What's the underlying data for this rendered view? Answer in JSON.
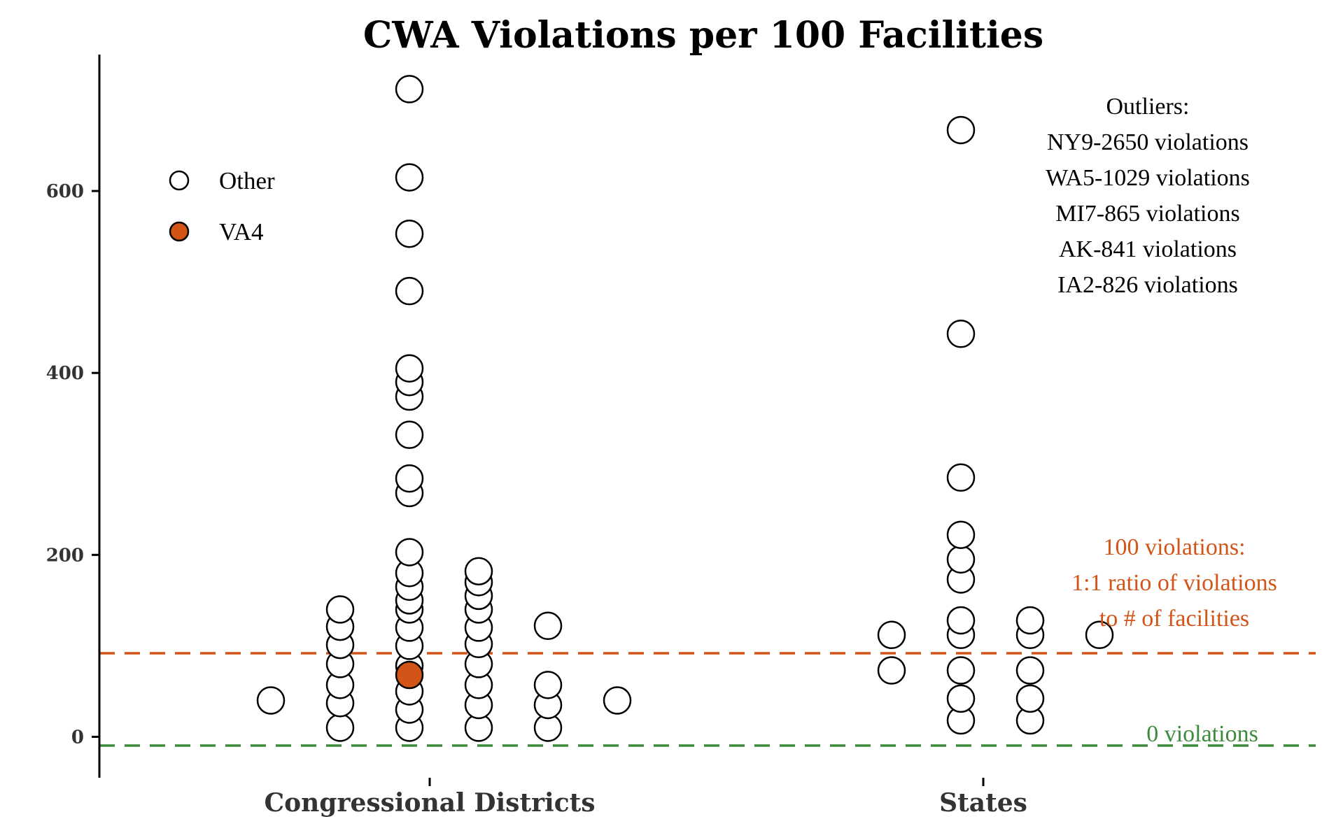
{
  "chart_data": {
    "type": "scatter",
    "title": "CWA Violations per 100 Facilities",
    "ylim": [
      -45,
      750
    ],
    "yticks": [
      0,
      200,
      400,
      600
    ],
    "categories": [
      "Congressional Districts",
      "States"
    ],
    "legend": {
      "placement": "top-left",
      "entries": [
        {
          "name": "Other",
          "fill": "#FFFFFF"
        },
        {
          "name": "VA4",
          "fill": "#D35417"
        }
      ]
    },
    "series": [
      {
        "name": "Other",
        "points": [
          {
            "group": "Congressional Districts",
            "col": -2,
            "y": 40
          },
          {
            "group": "Congressional Districts",
            "col": -1,
            "y": 10
          },
          {
            "group": "Congressional Districts",
            "col": -1,
            "y": 37
          },
          {
            "group": "Congressional Districts",
            "col": -1,
            "y": 57
          },
          {
            "group": "Congressional Districts",
            "col": -1,
            "y": 80
          },
          {
            "group": "Congressional Districts",
            "col": -1,
            "y": 101
          },
          {
            "group": "Congressional Districts",
            "col": -1,
            "y": 121
          },
          {
            "group": "Congressional Districts",
            "col": -1,
            "y": 140
          },
          {
            "group": "Congressional Districts",
            "col": 0,
            "y": 10
          },
          {
            "group": "Congressional Districts",
            "col": 0,
            "y": 30
          },
          {
            "group": "Congressional Districts",
            "col": 0,
            "y": 50
          },
          {
            "group": "Congressional Districts",
            "col": 0,
            "y": 78
          },
          {
            "group": "Congressional Districts",
            "col": 0,
            "y": 100
          },
          {
            "group": "Congressional Districts",
            "col": 0,
            "y": 120
          },
          {
            "group": "Congressional Districts",
            "col": 0,
            "y": 140
          },
          {
            "group": "Congressional Districts",
            "col": 0,
            "y": 150
          },
          {
            "group": "Congressional Districts",
            "col": 0,
            "y": 165
          },
          {
            "group": "Congressional Districts",
            "col": 0,
            "y": 180
          },
          {
            "group": "Congressional Districts",
            "col": 0,
            "y": 203
          },
          {
            "group": "Congressional Districts",
            "col": 0,
            "y": 268
          },
          {
            "group": "Congressional Districts",
            "col": 0,
            "y": 284
          },
          {
            "group": "Congressional Districts",
            "col": 0,
            "y": 332
          },
          {
            "group": "Congressional Districts",
            "col": 0,
            "y": 374
          },
          {
            "group": "Congressional Districts",
            "col": 0,
            "y": 390
          },
          {
            "group": "Congressional Districts",
            "col": 0,
            "y": 405
          },
          {
            "group": "Congressional Districts",
            "col": 0,
            "y": 490
          },
          {
            "group": "Congressional Districts",
            "col": 0,
            "y": 553
          },
          {
            "group": "Congressional Districts",
            "col": 0,
            "y": 615
          },
          {
            "group": "Congressional Districts",
            "col": 0,
            "y": 712
          },
          {
            "group": "Congressional Districts",
            "col": 1,
            "y": 10
          },
          {
            "group": "Congressional Districts",
            "col": 1,
            "y": 35
          },
          {
            "group": "Congressional Districts",
            "col": 1,
            "y": 57
          },
          {
            "group": "Congressional Districts",
            "col": 1,
            "y": 80
          },
          {
            "group": "Congressional Districts",
            "col": 1,
            "y": 102
          },
          {
            "group": "Congressional Districts",
            "col": 1,
            "y": 120
          },
          {
            "group": "Congressional Districts",
            "col": 1,
            "y": 140
          },
          {
            "group": "Congressional Districts",
            "col": 1,
            "y": 155
          },
          {
            "group": "Congressional Districts",
            "col": 1,
            "y": 170
          },
          {
            "group": "Congressional Districts",
            "col": 1,
            "y": 182
          },
          {
            "group": "Congressional Districts",
            "col": 2,
            "y": 10
          },
          {
            "group": "Congressional Districts",
            "col": 2,
            "y": 35
          },
          {
            "group": "Congressional Districts",
            "col": 2,
            "y": 57
          },
          {
            "group": "Congressional Districts",
            "col": 2,
            "y": 122
          },
          {
            "group": "Congressional Districts",
            "col": 3,
            "y": 40
          },
          {
            "group": "States",
            "col": -1,
            "y": 73
          },
          {
            "group": "States",
            "col": -1,
            "y": 112
          },
          {
            "group": "States",
            "col": 0,
            "y": 18
          },
          {
            "group": "States",
            "col": 0,
            "y": 42
          },
          {
            "group": "States",
            "col": 0,
            "y": 73
          },
          {
            "group": "States",
            "col": 0,
            "y": 112
          },
          {
            "group": "States",
            "col": 0,
            "y": 128
          },
          {
            "group": "States",
            "col": 0,
            "y": 173
          },
          {
            "group": "States",
            "col": 0,
            "y": 195
          },
          {
            "group": "States",
            "col": 0,
            "y": 222
          },
          {
            "group": "States",
            "col": 0,
            "y": 285
          },
          {
            "group": "States",
            "col": 0,
            "y": 443
          },
          {
            "group": "States",
            "col": 0,
            "y": 667
          },
          {
            "group": "States",
            "col": 1,
            "y": 18
          },
          {
            "group": "States",
            "col": 1,
            "y": 42
          },
          {
            "group": "States",
            "col": 1,
            "y": 73
          },
          {
            "group": "States",
            "col": 1,
            "y": 112
          },
          {
            "group": "States",
            "col": 1,
            "y": 128
          },
          {
            "group": "States",
            "col": 2,
            "y": 112
          }
        ]
      },
      {
        "name": "VA4",
        "points": [
          {
            "group": "Congressional Districts",
            "col": 0,
            "y": 68
          }
        ]
      }
    ],
    "reference_lines": [
      {
        "y": 100,
        "color": "#D35417",
        "style": "dashed",
        "label_lines": [
          "100 violations:",
          "1:1 ratio of violations",
          "to # of facilities"
        ]
      },
      {
        "y": 0,
        "color": "#3C8A3C",
        "style": "dashed",
        "label_lines": [
          "0 violations"
        ]
      }
    ],
    "annotation": {
      "placement": "top-right",
      "lines": [
        "Outliers:",
        "NY9-2650 violations",
        "WA5-1029 violations",
        "MI7-865 violations",
        "AK-841 violations",
        "IA2-826 violations"
      ]
    },
    "colors": {
      "marker_edge": "#000000",
      "axis": "#000000",
      "text": "#333333"
    }
  }
}
